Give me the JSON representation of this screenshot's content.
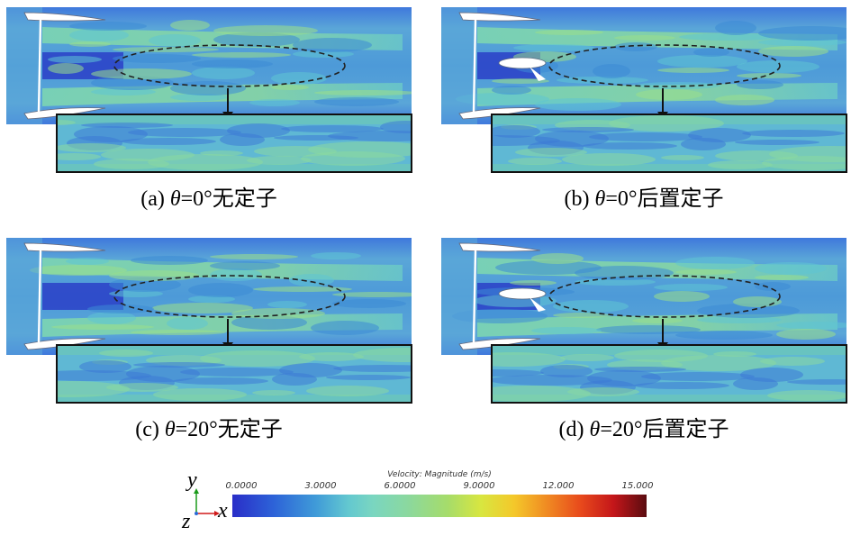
{
  "panels": [
    {
      "id": "a",
      "caption_prefix": "(a) ",
      "theta_symbol": "θ",
      "caption_value": "=0°",
      "caption_suffix": "无定子",
      "stator": false
    },
    {
      "id": "b",
      "caption_prefix": "(b) ",
      "theta_symbol": "θ",
      "caption_value": "=0°",
      "caption_suffix": "后置定子",
      "stator": true
    },
    {
      "id": "c",
      "caption_prefix": "(c) ",
      "theta_symbol": "θ",
      "caption_value": "=20°",
      "caption_suffix": "无定子",
      "stator": false
    },
    {
      "id": "d",
      "caption_prefix": "(d) ",
      "theta_symbol": "θ",
      "caption_value": "=20°",
      "caption_suffix": "后置定子",
      "stator": true
    }
  ],
  "colorbar": {
    "title": "Velocity: Magnitude (m/s)",
    "ticks": [
      "0.0000",
      "3.0000",
      "6.0000",
      "9.0000",
      "12.000",
      "15.000"
    ],
    "colors": {
      "low": "#2a2ec8",
      "mid": "#8ad8a0",
      "high": "#5a0c10"
    }
  },
  "axes": {
    "y": "y",
    "x": "x",
    "z": "z",
    "colors": {
      "y": "#1a9a1a",
      "x": "#d01a1a"
    }
  }
}
